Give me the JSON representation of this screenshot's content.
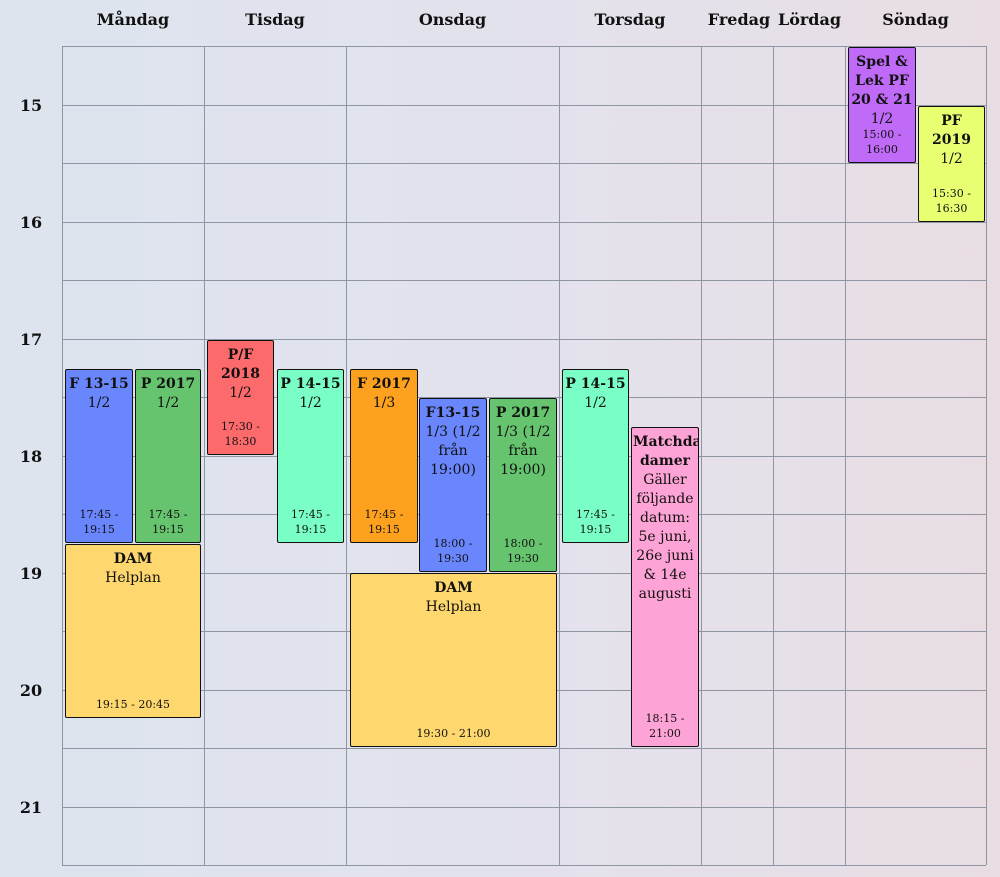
{
  "days": [
    "Måndag",
    "Tisdag",
    "Onsdag",
    "Torsdag",
    "Fredag",
    "Lördag",
    "Söndag"
  ],
  "hours": [
    "15",
    "16",
    "17",
    "18",
    "19",
    "20",
    "21"
  ],
  "events": [
    {
      "id": "ev1",
      "day": "Måndag",
      "title": "F 13-15",
      "sub": "1/2",
      "time": "17:45 - 19:15",
      "color": "#6a86fd"
    },
    {
      "id": "ev2",
      "day": "Måndag",
      "title": "P 2017",
      "sub": "1/2",
      "time": "17:45 - 19:15",
      "color": "#66c46e"
    },
    {
      "id": "ev3",
      "day": "Måndag",
      "title": "DAM",
      "sub": "Helplan",
      "time": "19:15 - 20:45",
      "color": "#fed86e"
    },
    {
      "id": "ev4",
      "day": "Tisdag",
      "title": "P/F 2018",
      "sub": "1/2",
      "time": "17:30 - 18:30",
      "color": "#fd6a6b"
    },
    {
      "id": "ev5",
      "day": "Tisdag",
      "title": "P 14-15",
      "sub": "1/2",
      "time": "17:45 - 19:15",
      "color": "#79ffc6"
    },
    {
      "id": "ev6",
      "day": "Onsdag",
      "title": "F 2017",
      "sub": "1/3",
      "time": "17:45 - 19:15",
      "color": "#fea11f"
    },
    {
      "id": "ev7",
      "day": "Onsdag",
      "title": "F13-15",
      "sub": "1/3 (1/2 från 19:00)",
      "time": "18:00 - 19:30",
      "color": "#6a86fd"
    },
    {
      "id": "ev8",
      "day": "Onsdag",
      "title": "P 2017",
      "sub": "1/3 (1/2 från 19:00)",
      "time": "18:00 - 19:30",
      "color": "#66c46e"
    },
    {
      "id": "ev9",
      "day": "Onsdag",
      "title": "DAM",
      "sub": "Helplan",
      "time": "19:30 - 21:00",
      "color": "#fed86e"
    },
    {
      "id": "ev10",
      "day": "Torsdag",
      "title": "P 14-15",
      "sub": "1/2",
      "time": "17:45 - 19:15",
      "color": "#79ffc6"
    },
    {
      "id": "ev11",
      "day": "Torsdag",
      "title": "Matchdag damer",
      "sub": "Gäller följande datum: 5e juni, 26e juni & 14e augusti",
      "time": "18:15 - 21:00",
      "color": "#fea3d6"
    },
    {
      "id": "ev12",
      "day": "Söndag",
      "title": "Spel & Lek PF 20 & 21",
      "sub": "1/2",
      "time": "15:00 - 16:00",
      "color": "#c06af8"
    },
    {
      "id": "ev13",
      "day": "Söndag",
      "title": "PF 2019",
      "sub": "1/2",
      "time": "15:30 - 16:30",
      "color": "#e8ff72"
    }
  ]
}
